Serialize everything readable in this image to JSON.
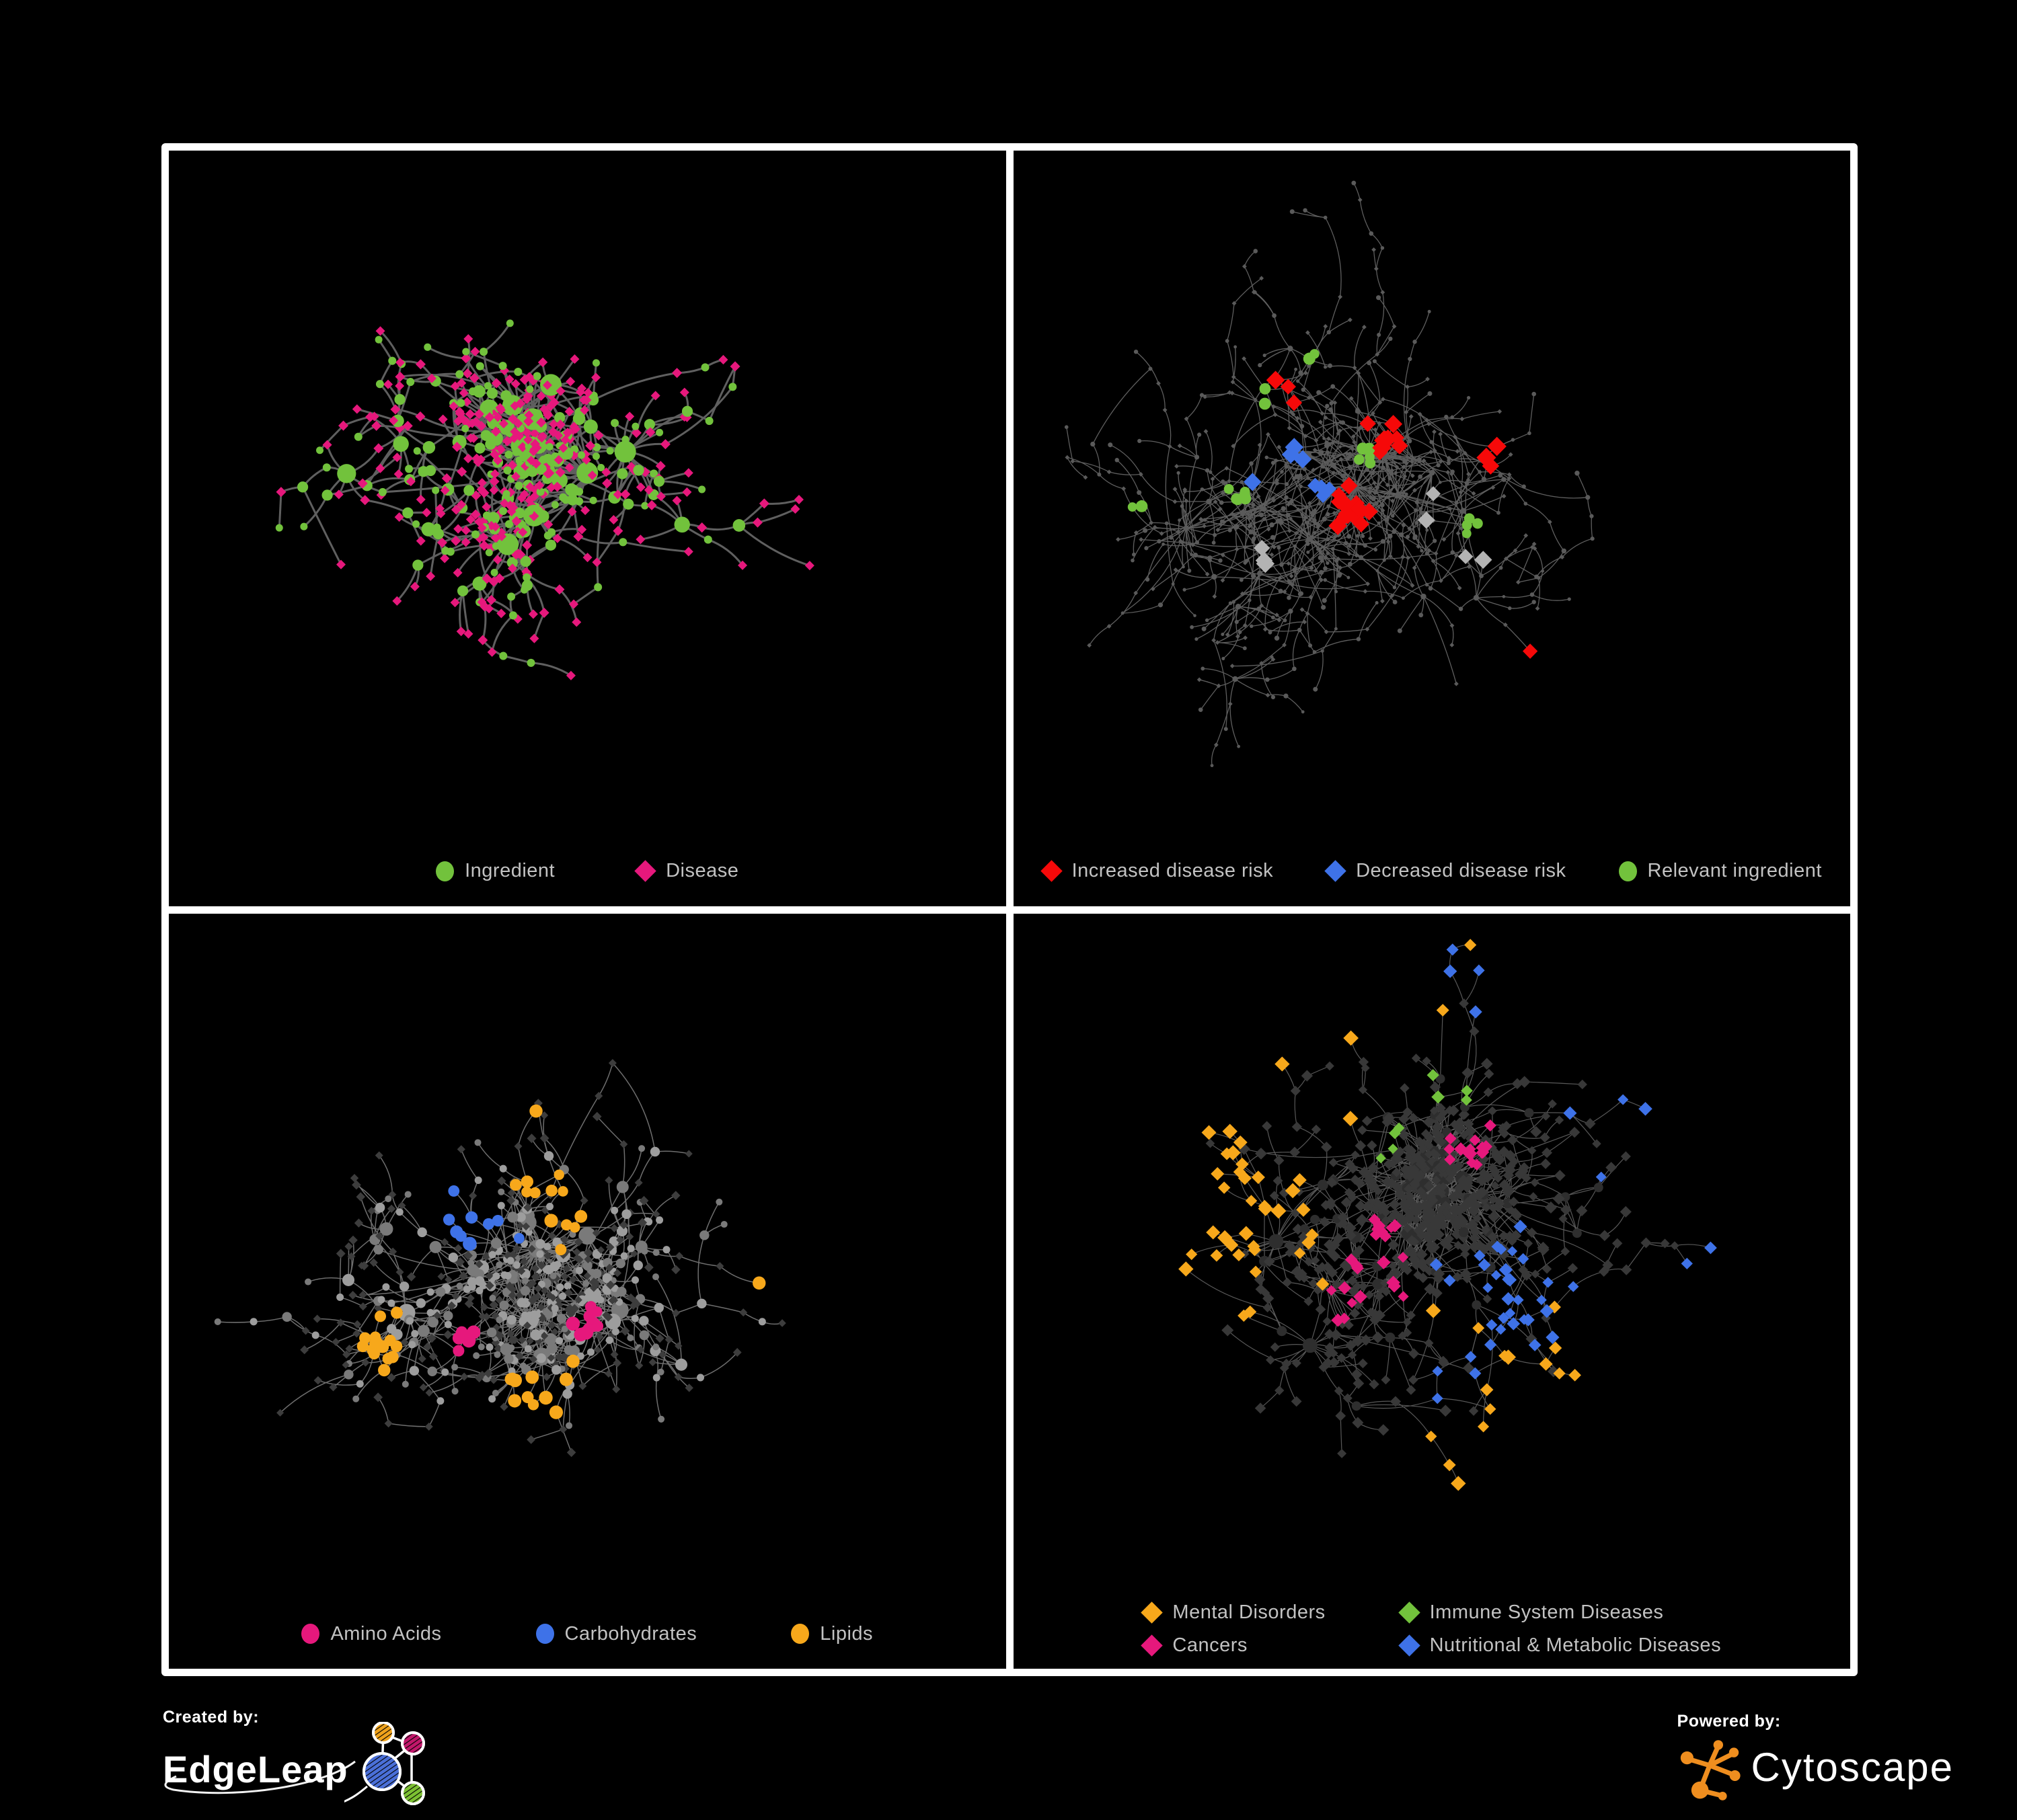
{
  "branding": {
    "created_by_label": "Created by:",
    "created_by_name": "EdgeLeap",
    "powered_by_label": "Powered by:",
    "powered_by_name": "Cytoscape"
  },
  "colors": {
    "background": "#000000",
    "board": "#ffffff",
    "legend_text": "#c2c2c2",
    "ingredient_green": "#72c23c",
    "disease_pink": "#e6187c",
    "risk_red": "#f60909",
    "risk_blue": "#3e72e8",
    "neutral_gray": "#b3b3b3",
    "lipid_orange": "#f7a81b",
    "edgeleap_blue": "#4a6fd8",
    "cytoscape_orange": "#ef8e1f"
  },
  "panels": [
    {
      "name": "ingredient-disease-network",
      "legend": [
        {
          "label": "Ingredient",
          "shape": "circle",
          "color": "#72c23c"
        },
        {
          "label": "Disease",
          "shape": "diamond",
          "color": "#e6187c"
        }
      ],
      "network": {
        "seed": 11,
        "nodes": 520,
        "step": 42,
        "chain": 0.34,
        "hubP": 0.07,
        "superP": 0.013,
        "extraEdges": 0.03,
        "edgeColor": "#686868",
        "edgeWidth": 3,
        "edgeOpacity": 0.92,
        "style": "p1",
        "palette": {
          "green": "#72c23c",
          "pink": "#e6187c"
        },
        "groups": []
      }
    },
    {
      "name": "disease-risk-network",
      "legend": [
        {
          "label": "Increased disease risk",
          "shape": "diamond",
          "color": "#f60909"
        },
        {
          "label": "Decreased disease risk",
          "shape": "diamond",
          "color": "#3e72e8"
        },
        {
          "label": "Relevant ingredient",
          "shape": "circle",
          "color": "#72c23c"
        }
      ],
      "network": {
        "seed": 77,
        "nodes": 760,
        "step": 40,
        "chain": 0.44,
        "hubP": 0.07,
        "superP": 0.01,
        "extraEdges": 0.09,
        "edgeColor": "#6f6f6f",
        "edgeWidth": 1.3,
        "edgeOpacity": 0.85,
        "style": "p2",
        "palette": {
          "dot": "#5a5a5a"
        },
        "groups": [
          {
            "color": "#f60909",
            "shape": "diamond",
            "size": 13,
            "count": 30,
            "anchors": [
              [
                0.33,
                0.36
              ],
              [
                0.45,
                0.42
              ],
              [
                0.52,
                0.3
              ],
              [
                0.4,
                0.52
              ],
              [
                0.57,
                0.44
              ],
              [
                0.66,
                0.3
              ],
              [
                0.62,
                0.74
              ],
              [
                0.68,
                0.8
              ],
              [
                0.25,
                0.42
              ]
            ]
          },
          {
            "color": "#3e72e8",
            "shape": "diamond",
            "size": 12,
            "count": 9,
            "anchors": [
              [
                0.82,
                0.17
              ],
              [
                0.84,
                0.17
              ],
              [
                0.33,
                0.44
              ],
              [
                0.36,
                0.5
              ],
              [
                0.3,
                0.47
              ]
            ]
          },
          {
            "color": "#b3b3b3",
            "shape": "diamond",
            "size": 12,
            "count": 7,
            "anchors": [
              [
                0.27,
                0.4
              ],
              [
                0.5,
                0.52
              ],
              [
                0.55,
                0.6
              ],
              [
                0.3,
                0.6
              ]
            ]
          },
          {
            "color": "#72c23c",
            "shape": "circle",
            "size": 8,
            "count": 22,
            "anchors": [
              [
                0.3,
                0.36
              ],
              [
                0.42,
                0.44
              ],
              [
                0.27,
                0.5
              ],
              [
                0.5,
                0.38
              ],
              [
                0.36,
                0.3
              ],
              [
                0.55,
                0.55
              ],
              [
                0.15,
                0.52
              ],
              [
                0.25,
                0.3
              ]
            ]
          }
        ]
      }
    },
    {
      "name": "ingredient-class-network",
      "legend": [
        {
          "label": "Amino Acids",
          "shape": "circle",
          "color": "#e6187c"
        },
        {
          "label": "Carbohydrates",
          "shape": "circle",
          "color": "#3e72e8"
        },
        {
          "label": "Lipids",
          "shape": "circle",
          "color": "#f7a81b"
        }
      ],
      "network": {
        "seed": 733,
        "nodes": 620,
        "step": 42,
        "chain": 0.4,
        "hubP": 0.07,
        "superP": 0.013,
        "extraEdges": 0.07,
        "edgeColor": "#8a8a8a",
        "edgeWidth": 1.5,
        "edgeOpacity": 0.8,
        "style": "p3",
        "palette": {
          "c1": "#9d9d9d",
          "c2": "#7a7a7a",
          "d": "#3d3d3d"
        },
        "groups": [
          {
            "color": "#f7a81b",
            "shape": "circle",
            "size": 9,
            "count": 40,
            "anchors": [
              [
                0.33,
                0.2
              ],
              [
                0.37,
                0.24
              ],
              [
                0.3,
                0.24
              ],
              [
                0.35,
                0.17
              ],
              [
                0.45,
                0.38
              ],
              [
                0.42,
                0.3
              ],
              [
                0.48,
                0.44
              ],
              [
                0.44,
                0.7
              ],
              [
                0.66,
                0.55
              ],
              [
                0.25,
                0.62
              ],
              [
                0.18,
                0.1
              ]
            ]
          },
          {
            "color": "#e6187c",
            "shape": "circle",
            "size": 9,
            "count": 15,
            "anchors": [
              [
                0.12,
                0.33
              ],
              [
                0.5,
                0.6
              ],
              [
                0.25,
                0.78
              ],
              [
                0.66,
                0.3
              ],
              [
                0.9,
                0.28
              ],
              [
                0.42,
                0.04
              ],
              [
                0.57,
                0.76
              ],
              [
                0.05,
                0.55
              ],
              [
                0.35,
                0.62
              ],
              [
                0.72,
                0.13
              ]
            ]
          },
          {
            "color": "#3e72e8",
            "shape": "circle",
            "size": 9,
            "count": 9,
            "anchors": [
              [
                0.1,
                0.32
              ],
              [
                0.3,
                0.2
              ],
              [
                0.33,
                0.22
              ],
              [
                0.5,
                0.22
              ],
              [
                0.78,
                0.72
              ],
              [
                0.36,
                0.45
              ]
            ]
          }
        ]
      }
    },
    {
      "name": "disease-class-network",
      "legend": [
        {
          "label": "Mental Disorders",
          "shape": "diamond",
          "color": "#f7a81b"
        },
        {
          "label": "Immune System Diseases",
          "shape": "diamond",
          "color": "#72c23c"
        },
        {
          "label": "Cancers",
          "shape": "diamond",
          "color": "#e6187c"
        },
        {
          "label": "Nutritional & Metabolic Diseases",
          "shape": "diamond",
          "color": "#3e72e8"
        }
      ],
      "network": {
        "seed": 2024,
        "nodes": 780,
        "step": 40,
        "chain": 0.44,
        "hubP": 0.07,
        "superP": 0.012,
        "extraEdges": 0.09,
        "edgeColor": "#6f6f6f",
        "edgeWidth": 1.2,
        "edgeOpacity": 0.8,
        "style": "p4",
        "palette": {
          "c": "#2e2e2e",
          "d": "#383838"
        },
        "groups": [
          {
            "color": "#f7a81b",
            "shape": "diamond",
            "size": 10,
            "count": 55,
            "anchors": [
              [
                0.15,
                0.44
              ],
              [
                0.19,
                0.48
              ],
              [
                0.13,
                0.5
              ],
              [
                0.21,
                0.42
              ],
              [
                0.3,
                0.12
              ],
              [
                0.35,
                0.06
              ],
              [
                0.55,
                0.83
              ],
              [
                0.72,
                0.78
              ],
              [
                0.12,
                0.35
              ]
            ]
          },
          {
            "color": "#e6187c",
            "shape": "diamond",
            "size": 9,
            "count": 38,
            "anchors": [
              [
                0.42,
                0.52
              ],
              [
                0.46,
                0.56
              ],
              [
                0.39,
                0.57
              ],
              [
                0.44,
                0.48
              ],
              [
                0.87,
                0.27
              ],
              [
                0.9,
                0.3
              ],
              [
                0.55,
                0.35
              ],
              [
                0.26,
                0.87
              ],
              [
                0.2,
                0.6
              ]
            ]
          },
          {
            "color": "#3e72e8",
            "shape": "diamond",
            "size": 9,
            "count": 44,
            "anchors": [
              [
                0.56,
                0.62
              ],
              [
                0.6,
                0.58
              ],
              [
                0.58,
                0.66
              ],
              [
                0.75,
                0.28
              ],
              [
                0.78,
                0.32
              ],
              [
                0.68,
                0.1
              ],
              [
                0.83,
                0.55
              ],
              [
                0.2,
                0.14
              ],
              [
                0.47,
                0.88
              ],
              [
                0.1,
                0.6
              ],
              [
                0.55,
                0.08
              ],
              [
                0.9,
                0.12
              ]
            ]
          },
          {
            "color": "#72c23c",
            "shape": "diamond",
            "size": 9,
            "count": 8,
            "anchors": [
              [
                0.45,
                0.33
              ],
              [
                0.52,
                0.27
              ],
              [
                0.35,
                0.75
              ],
              [
                0.5,
                0.88
              ],
              [
                0.3,
                0.86
              ],
              [
                0.6,
                0.2
              ],
              [
                0.25,
                0.3
              ]
            ]
          }
        ]
      }
    }
  ]
}
